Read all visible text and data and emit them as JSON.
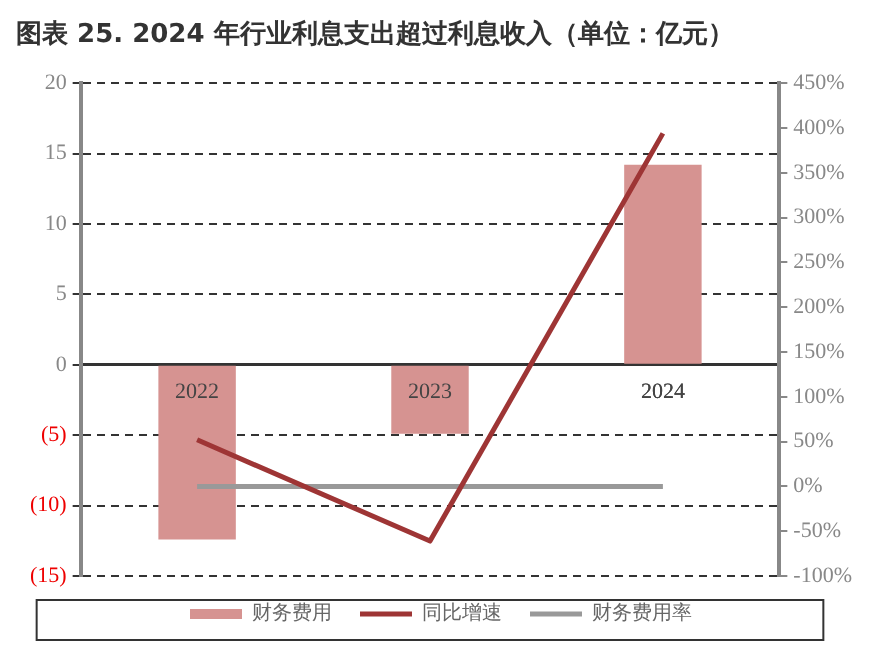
{
  "chart_data": {
    "type": "bar",
    "title": "图表 25. 2024 年行业利息支出超过利息收入（单位：亿元）",
    "categories": [
      "2022",
      "2023",
      "2024"
    ],
    "series": [
      {
        "name": "财务费用",
        "color": "#d69391",
        "values": [
          -12.4,
          -4.9,
          14.2
        ]
      },
      {
        "name": "同比增速",
        "type": "line",
        "axis": "y2",
        "color": "#9e3535",
        "values": [
          52,
          -61,
          394
        ]
      },
      {
        "name": "财务费用率",
        "type": "line",
        "axis": "y2",
        "color": "#999999",
        "values": [
          0,
          0,
          0
        ]
      }
    ],
    "ylim": [
      -15,
      20
    ],
    "yticks": [
      {
        "value": -15,
        "label": "(15)"
      },
      {
        "value": -10,
        "label": "(10)"
      },
      {
        "value": -5,
        "label": "(5)"
      },
      0,
      5,
      10,
      15,
      20
    ],
    "y2lim": [
      -100,
      450
    ],
    "y2ticks": [
      {
        "value": -100,
        "label": "-100%"
      },
      {
        "value": -50,
        "label": "-50%"
      },
      {
        "value": 0,
        "label": "0%"
      },
      {
        "value": 50,
        "label": "50%"
      },
      {
        "value": 100,
        "label": "100%"
      },
      {
        "value": 150,
        "label": "150%"
      },
      {
        "value": 200,
        "label": "200%"
      },
      {
        "value": 250,
        "label": "250%"
      },
      {
        "value": 300,
        "label": "300%"
      },
      {
        "value": 350,
        "label": "350%"
      },
      {
        "value": 400,
        "label": "400%"
      },
      {
        "value": 450,
        "label": "450%"
      }
    ],
    "grid": "y",
    "legend": "bottom",
    "marker": "none",
    "line_style": "solid"
  }
}
